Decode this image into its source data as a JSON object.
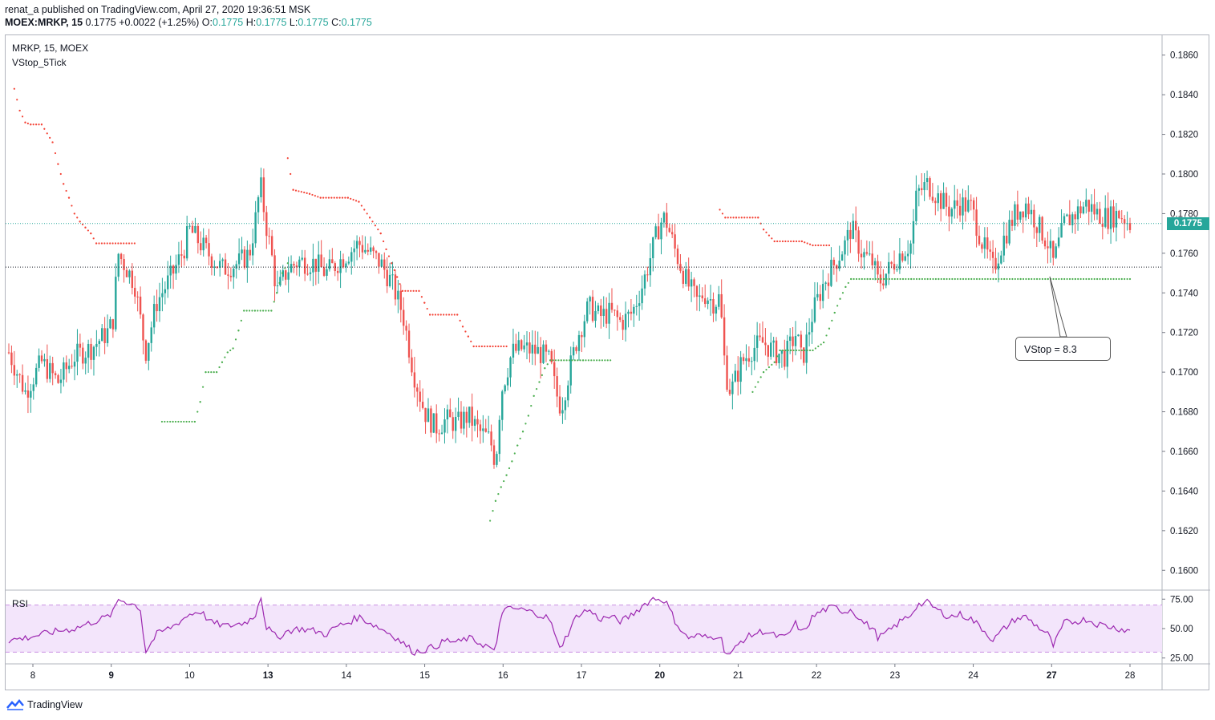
{
  "header": {
    "published_line": "renat_a published on TradingView.com, April 27, 2020 19:36:51 MSK",
    "symbol": "MOEX:MRKP, 15",
    "last": "0.1775",
    "change": "+0.0022 (+1.25%)",
    "ohlc": {
      "o_label": "O:",
      "o": "0.1775",
      "h_label": "H:",
      "h": "0.1775",
      "l_label": "L:",
      "l": "0.1775",
      "c_label": "C:",
      "c": "0.1775"
    }
  },
  "pane_legend": {
    "symbol_line": "MRKP, 15, MOEX",
    "indicator": "VStop_5Tick"
  },
  "rsi_legend": "RSI",
  "callout": "VStop = 8.3",
  "current_price_tag": "0.1775",
  "footer": {
    "brand": "TradingView"
  },
  "colors": {
    "up": "#26a69a",
    "down": "#ef5350",
    "stop_up": "#4caf50",
    "stop_down": "#f44336",
    "rsi_line": "#9c27b0",
    "rsi_band": "#f3e5fb",
    "accent": "#26a69a"
  },
  "chart_data": [
    {
      "type": "candlestick",
      "title": "MRKP, 15, MOEX",
      "ylim": [
        0.159,
        0.187
      ],
      "y_ticks": [
        0.16,
        0.162,
        0.164,
        0.166,
        0.168,
        0.17,
        0.172,
        0.174,
        0.176,
        0.178,
        0.18,
        0.182,
        0.184,
        0.186
      ],
      "y_tick_labels": [
        "0.1600",
        "0.1620",
        "0.1640",
        "0.1660",
        "0.1680",
        "0.1700",
        "0.1720",
        "0.1740",
        "0.1760",
        "0.1780",
        "0.1800",
        "0.1820",
        "0.1840",
        "0.1860"
      ],
      "x_tick_labels": [
        "8",
        "9",
        "10",
        "13",
        "14",
        "15",
        "16",
        "17",
        "20",
        "21",
        "22",
        "23",
        "24",
        "27",
        "28"
      ],
      "x_tick_bold": [
        "9",
        "13",
        "20",
        "27"
      ],
      "current_price": 0.1775,
      "reference_line": 0.1753,
      "price_path": [
        [
          0,
          0.171
        ],
        [
          3,
          0.169
        ],
        [
          6,
          0.1705
        ],
        [
          9,
          0.1695
        ],
        [
          12,
          0.1708
        ],
        [
          15,
          0.1712
        ],
        [
          18,
          0.172
        ],
        [
          19,
          0.1725
        ],
        [
          20,
          0.176
        ],
        [
          21,
          0.1755
        ],
        [
          23,
          0.1745
        ],
        [
          25,
          0.171
        ],
        [
          27,
          0.1735
        ],
        [
          30,
          0.175
        ],
        [
          32,
          0.1762
        ],
        [
          33,
          0.1772
        ],
        [
          35,
          0.1765
        ],
        [
          37,
          0.1758
        ],
        [
          39,
          0.1752
        ],
        [
          42,
          0.1755
        ],
        [
          44,
          0.176
        ],
        [
          45,
          0.1775
        ],
        [
          46,
          0.1795
        ],
        [
          47,
          0.1775
        ],
        [
          48,
          0.176
        ],
        [
          49,
          0.174
        ],
        [
          51,
          0.1752
        ],
        [
          53,
          0.1756
        ],
        [
          56,
          0.1755
        ],
        [
          58,
          0.175
        ],
        [
          60,
          0.1755
        ],
        [
          62,
          0.176
        ],
        [
          64,
          0.1765
        ],
        [
          66,
          0.176
        ],
        [
          68,
          0.1755
        ],
        [
          70,
          0.1745
        ],
        [
          72,
          0.173
        ],
        [
          74,
          0.17
        ],
        [
          76,
          0.168
        ],
        [
          78,
          0.1672
        ],
        [
          80,
          0.1676
        ],
        [
          82,
          0.1674
        ],
        [
          84,
          0.1678
        ],
        [
          86,
          0.167
        ],
        [
          88,
          0.1666
        ],
        [
          89,
          0.1654
        ],
        [
          90,
          0.169
        ],
        [
          92,
          0.171
        ],
        [
          94,
          0.1712
        ],
        [
          97,
          0.171
        ],
        [
          99,
          0.1705
        ],
        [
          100,
          0.169
        ],
        [
          101,
          0.1682
        ],
        [
          102,
          0.1695
        ],
        [
          104,
          0.1718
        ],
        [
          106,
          0.1733
        ],
        [
          108,
          0.1728
        ],
        [
          110,
          0.173
        ],
        [
          112,
          0.1725
        ],
        [
          114,
          0.173
        ],
        [
          116,
          0.1745
        ],
        [
          118,
          0.1765
        ],
        [
          119,
          0.1775
        ],
        [
          120,
          0.1778
        ],
        [
          122,
          0.176
        ],
        [
          124,
          0.1745
        ],
        [
          126,
          0.1735
        ],
        [
          127,
          0.174
        ],
        [
          129,
          0.1735
        ],
        [
          130,
          0.1738
        ],
        [
          131,
          0.17
        ],
        [
          132,
          0.169
        ],
        [
          134,
          0.1705
        ],
        [
          136,
          0.1712
        ],
        [
          138,
          0.1715
        ],
        [
          140,
          0.171
        ],
        [
          142,
          0.1708
        ],
        [
          144,
          0.172
        ],
        [
          145,
          0.1705
        ],
        [
          147,
          0.173
        ],
        [
          149,
          0.1745
        ],
        [
          151,
          0.1755
        ],
        [
          153,
          0.1765
        ],
        [
          154,
          0.1773
        ],
        [
          156,
          0.176
        ],
        [
          158,
          0.1755
        ],
        [
          159,
          0.1745
        ],
        [
          161,
          0.1752
        ],
        [
          163,
          0.176
        ],
        [
          165,
          0.1765
        ],
        [
          166,
          0.179
        ],
        [
          168,
          0.1795
        ],
        [
          170,
          0.1788
        ],
        [
          172,
          0.1782
        ],
        [
          174,
          0.1785
        ],
        [
          176,
          0.1783
        ],
        [
          178,
          0.1765
        ],
        [
          180,
          0.1752
        ],
        [
          182,
          0.1768
        ],
        [
          184,
          0.178
        ],
        [
          186,
          0.1785
        ],
        [
          188,
          0.1775
        ],
        [
          190,
          0.1765
        ],
        [
          191,
          0.1755
        ],
        [
          193,
          0.1775
        ],
        [
          195,
          0.178
        ],
        [
          197,
          0.1785
        ],
        [
          199,
          0.178
        ],
        [
          201,
          0.1778
        ],
        [
          203,
          0.178
        ],
        [
          205,
          0.1775
        ]
      ],
      "vstop_short": [
        [
          1,
          0.1843
        ],
        [
          2,
          0.1832
        ],
        [
          3,
          0.1826
        ],
        [
          4,
          0.1825
        ],
        [
          6,
          0.1825
        ],
        [
          8,
          0.1816
        ],
        [
          9,
          0.1805
        ],
        [
          10,
          0.1795
        ],
        [
          11,
          0.1788
        ],
        [
          12,
          0.178
        ],
        [
          13,
          0.1776
        ],
        [
          14,
          0.1773
        ],
        [
          15,
          0.177
        ],
        [
          16,
          0.1765
        ],
        [
          23,
          0.1765
        ],
        [
          51,
          0.1808
        ],
        [
          52,
          0.1792
        ],
        [
          55,
          0.179
        ],
        [
          57,
          0.1788
        ],
        [
          62,
          0.1788
        ],
        [
          64,
          0.1786
        ],
        [
          66,
          0.1778
        ],
        [
          68,
          0.177
        ],
        [
          69,
          0.1762
        ],
        [
          70,
          0.1755
        ],
        [
          71,
          0.1748
        ],
        [
          72,
          0.1741
        ],
        [
          75,
          0.1741
        ],
        [
          76,
          0.1735
        ],
        [
          77,
          0.1729
        ],
        [
          82,
          0.1729
        ],
        [
          83,
          0.1723
        ],
        [
          84,
          0.1718
        ],
        [
          85,
          0.1713
        ],
        [
          86,
          0.1713
        ],
        [
          91,
          0.1713
        ],
        [
          130,
          0.1782
        ],
        [
          131,
          0.1778
        ],
        [
          133,
          0.1778
        ],
        [
          137,
          0.1778
        ],
        [
          138,
          0.1772
        ],
        [
          140,
          0.1766
        ],
        [
          145,
          0.1766
        ],
        [
          147,
          0.1764
        ],
        [
          150,
          0.1764
        ]
      ],
      "vstop_long": [
        [
          28,
          0.1675
        ],
        [
          30,
          0.1675
        ],
        [
          34,
          0.1675
        ],
        [
          35,
          0.1685
        ],
        [
          36,
          0.17
        ],
        [
          38,
          0.17
        ],
        [
          39,
          0.1705
        ],
        [
          40,
          0.171
        ],
        [
          41,
          0.1712
        ],
        [
          42,
          0.1721
        ],
        [
          43,
          0.1731
        ],
        [
          45,
          0.1731
        ],
        [
          48,
          0.1731
        ],
        [
          49,
          0.174
        ],
        [
          50,
          0.175
        ],
        [
          51,
          0.1755
        ],
        [
          88,
          0.1625
        ],
        [
          89,
          0.1635
        ],
        [
          90,
          0.1642
        ],
        [
          91,
          0.1648
        ],
        [
          92,
          0.1655
        ],
        [
          93,
          0.1663
        ],
        [
          94,
          0.167
        ],
        [
          95,
          0.1678
        ],
        [
          96,
          0.1688
        ],
        [
          97,
          0.1695
        ],
        [
          98,
          0.1702
        ],
        [
          99,
          0.1706
        ],
        [
          101,
          0.1706
        ],
        [
          105,
          0.1706
        ],
        [
          110,
          0.1706
        ],
        [
          136,
          0.169
        ],
        [
          138,
          0.17
        ],
        [
          140,
          0.1705
        ],
        [
          141,
          0.1711
        ],
        [
          143,
          0.1711
        ],
        [
          147,
          0.1711
        ],
        [
          149,
          0.1715
        ],
        [
          150,
          0.1722
        ],
        [
          151,
          0.173
        ],
        [
          152,
          0.1737
        ],
        [
          153,
          0.1743
        ],
        [
          154,
          0.1747
        ],
        [
          157,
          0.1747
        ],
        [
          160,
          0.1747
        ],
        [
          165,
          0.1747
        ],
        [
          170,
          0.1747
        ],
        [
          175,
          0.1747
        ],
        [
          180,
          0.1747
        ],
        [
          185,
          0.1747
        ],
        [
          190,
          0.1747
        ],
        [
          195,
          0.1747
        ],
        [
          200,
          0.1747
        ],
        [
          205,
          0.1747
        ]
      ]
    },
    {
      "type": "line",
      "title": "RSI",
      "ylim": [
        20,
        82
      ],
      "y_ticks": [
        25,
        50,
        75
      ],
      "y_tick_labels": [
        "25.00",
        "50.00",
        "75.00"
      ],
      "band": [
        30,
        70
      ],
      "values": [
        [
          0,
          40
        ],
        [
          3,
          42
        ],
        [
          6,
          45
        ],
        [
          9,
          48
        ],
        [
          12,
          50
        ],
        [
          15,
          55
        ],
        [
          18,
          60
        ],
        [
          19,
          63
        ],
        [
          20,
          75
        ],
        [
          22,
          72
        ],
        [
          24,
          68
        ],
        [
          25,
          30
        ],
        [
          27,
          45
        ],
        [
          30,
          52
        ],
        [
          33,
          62
        ],
        [
          35,
          65
        ],
        [
          37,
          55
        ],
        [
          40,
          52
        ],
        [
          43,
          55
        ],
        [
          45,
          60
        ],
        [
          46,
          80
        ],
        [
          47,
          52
        ],
        [
          49,
          42
        ],
        [
          51,
          48
        ],
        [
          53,
          50
        ],
        [
          56,
          48
        ],
        [
          58,
          45
        ],
        [
          60,
          52
        ],
        [
          62,
          55
        ],
        [
          64,
          60
        ],
        [
          66,
          55
        ],
        [
          68,
          50
        ],
        [
          70,
          45
        ],
        [
          72,
          38
        ],
        [
          74,
          30
        ],
        [
          76,
          32
        ],
        [
          78,
          35
        ],
        [
          80,
          40
        ],
        [
          82,
          38
        ],
        [
          84,
          42
        ],
        [
          86,
          38
        ],
        [
          88,
          34
        ],
        [
          89,
          28
        ],
        [
          90,
          65
        ],
        [
          92,
          67
        ],
        [
          94,
          66
        ],
        [
          97,
          62
        ],
        [
          99,
          58
        ],
        [
          100,
          40
        ],
        [
          101,
          35
        ],
        [
          102,
          44
        ],
        [
          104,
          62
        ],
        [
          106,
          66
        ],
        [
          108,
          58
        ],
        [
          110,
          60
        ],
        [
          112,
          56
        ],
        [
          114,
          62
        ],
        [
          116,
          70
        ],
        [
          118,
          76
        ],
        [
          120,
          74
        ],
        [
          122,
          55
        ],
        [
          124,
          42
        ],
        [
          126,
          44
        ],
        [
          128,
          42
        ],
        [
          130,
          45
        ],
        [
          131,
          30
        ],
        [
          132,
          28
        ],
        [
          134,
          40
        ],
        [
          136,
          45
        ],
        [
          138,
          48
        ],
        [
          140,
          44
        ],
        [
          142,
          42
        ],
        [
          144,
          55
        ],
        [
          145,
          45
        ],
        [
          147,
          60
        ],
        [
          149,
          66
        ],
        [
          151,
          68
        ],
        [
          153,
          64
        ],
        [
          154,
          67
        ],
        [
          156,
          56
        ],
        [
          158,
          50
        ],
        [
          159,
          42
        ],
        [
          161,
          48
        ],
        [
          163,
          56
        ],
        [
          165,
          62
        ],
        [
          166,
          70
        ],
        [
          168,
          72
        ],
        [
          170,
          65
        ],
        [
          172,
          60
        ],
        [
          174,
          62
        ],
        [
          176,
          58
        ],
        [
          178,
          50
        ],
        [
          180,
          40
        ],
        [
          182,
          50
        ],
        [
          184,
          58
        ],
        [
          186,
          60
        ],
        [
          188,
          52
        ],
        [
          190,
          45
        ],
        [
          191,
          35
        ],
        [
          193,
          55
        ],
        [
          195,
          56
        ],
        [
          197,
          58
        ],
        [
          199,
          54
        ],
        [
          201,
          52
        ],
        [
          203,
          50
        ],
        [
          205,
          48
        ]
      ]
    }
  ]
}
